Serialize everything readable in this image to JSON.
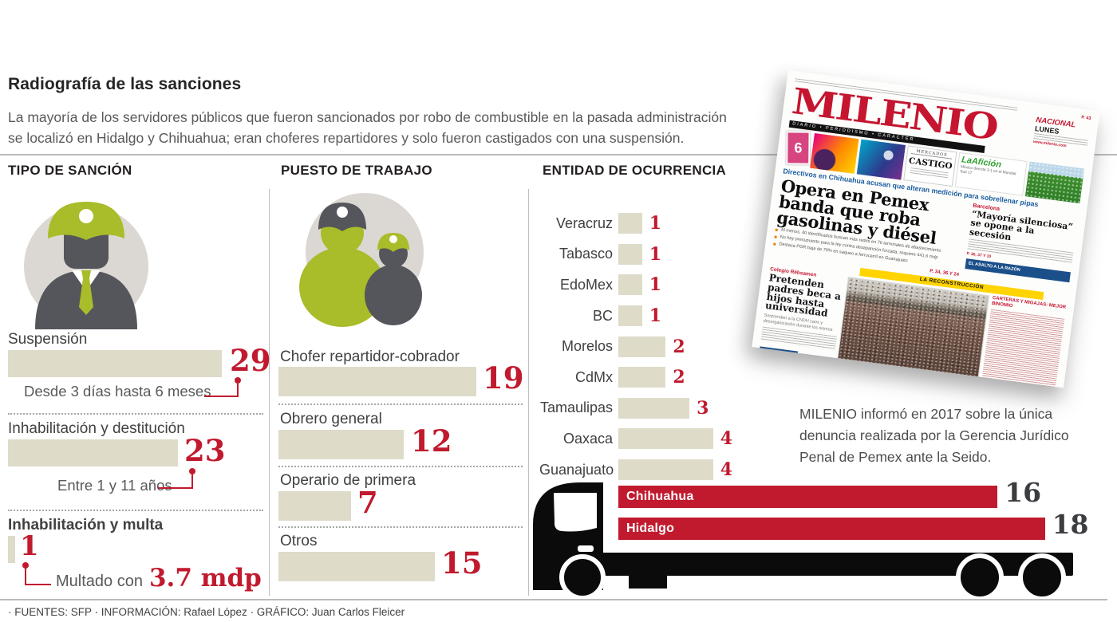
{
  "colors": {
    "red": "#C11A2E",
    "beige": "#DEDBC9",
    "green": "#A9BC29",
    "dark_gray": "#55565B",
    "light_gray": "#DBD7D2",
    "text": "#414042",
    "milenio_red": "#C5152F",
    "yellow": "#FFD400",
    "blue": "#1B4F8A"
  },
  "icons": {
    "tipo": "worker-with-helmet-icon",
    "puesto": "two-workers-icon",
    "entidad": "tanker-truck-silhouette"
  },
  "header": {
    "title": "Radiografía de las sanciones",
    "subtitle": [
      "La mayoría de los servidores públicos que fueron sancionados por robo de combustible en la pasada administración",
      "se localizó en Hidalgo y Chihuahua; eran choferes repartidores y solo fueron castigados con una suspensión."
    ]
  },
  "chart_data": [
    {
      "type": "bar",
      "orientation": "horizontal",
      "title": "TIPO DE SANCIÓN",
      "categories": [
        "Suspensión",
        "Inhabilitación y destitución",
        "Inhabilitación y multa"
      ],
      "values": [
        29,
        23,
        1
      ],
      "notes": [
        "Desde 3 días hasta 6 meses",
        "Entre 1 y 11 años",
        "Multado con 3.7 mdp"
      ],
      "fine": {
        "prefix": "Multado con",
        "amount": "3.7 mdp"
      },
      "bar_color": "#DEDBC9",
      "value_color": "#C11A2E"
    },
    {
      "type": "bar",
      "orientation": "horizontal",
      "title": "PUESTO DE TRABAJO",
      "categories": [
        "Chofer repartidor-cobrador",
        "Obrero general",
        "Operario de primera",
        "Otros"
      ],
      "values": [
        19,
        12,
        7,
        15
      ],
      "bar_color": "#DEDBC9",
      "value_color": "#C11A2E"
    },
    {
      "type": "bar",
      "orientation": "horizontal",
      "title": "ENTIDAD DE OCURRENCIA",
      "categories": [
        "Veracruz",
        "Tabasco",
        "EdoMex",
        "BC",
        "Morelos",
        "CdMx",
        "Tamaulipas",
        "Oaxaca",
        "Guanajuato",
        "Chihuahua",
        "Hidalgo"
      ],
      "values": [
        1,
        1,
        1,
        1,
        2,
        2,
        3,
        4,
        4,
        16,
        18
      ],
      "highlight_categories": [
        "Chihuahua",
        "Hidalgo"
      ],
      "highlight_color": "#C11A2E",
      "bar_color": "#DEDBC9",
      "value_color": "#C11A2E"
    }
  ],
  "newspaper": {
    "masthead": "MILENIO",
    "masthead_sub": "DIARIO • PERIODISMO • CARÁCTER",
    "page_ref": "P. 43",
    "edition_brand": "NACIONAL",
    "edition_day": "LUNES",
    "site": "www.milenio.com",
    "badge": "6",
    "mercados": "MERCADOS",
    "castigo": "CASTIGO",
    "aficion": "LaAfición",
    "aficion_sub": "México derrota 3-1 en el Mundial Sub 17",
    "kicker": "Directivos en Chihuahua acusan que alteran medición para sobrellenar pipas",
    "headline": "Opera en Pemex banda que roba gasolinas y diésel",
    "bullets": [
      "Al menos, 40 identificados buscan más redes en 76 terminales de abastecimiento",
      "No hay presupuesto para la ley contra desaparición forzada; requiere 441.6 mdp",
      "Destaca PGR baja de 70% en saqueo a ferrocarril en Guanajuato"
    ],
    "pages_ref": "P. 34, 36 Y 24",
    "side_label": "Barcelona",
    "side_headline": "“Mayoría silenciosa” se opone a la secesión",
    "side_pages": "P. 36, 37 Y 10",
    "column_box": "EL ASALTO A LA RAZÓN",
    "banner": "LA RECONSTRUCCIÓN",
    "left_kicker": "Colegio Rébsamen",
    "left_headline": "Pretenden padres beca a hijos hasta universidad",
    "left_sub": "Sorprenden a la CNDH caos y desorganización durante los sismos",
    "right_kicker": "CARTERAS Y MIGAJAS: MEJOR BINOMIO",
    "hoy_escriben": "HOY ESCRIBEN",
    "logo_letter": "m"
  },
  "caption": "MILENIO informó en 2017 sobre la única denuncia realizada por la Gerencia Jurídico Penal de Pemex ante la Seido.",
  "footer": "· FUENTES: SFP · INFORMACIÓN: Rafael López · GRÁFICO: Juan Carlos Fleicer"
}
